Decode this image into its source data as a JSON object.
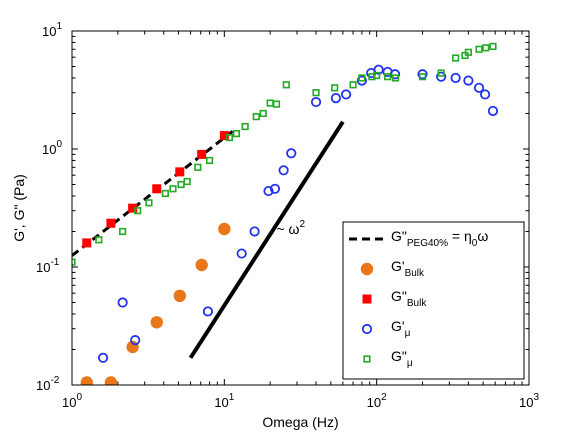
{
  "chart_data": {
    "type": "scatter",
    "xscale": "log",
    "yscale": "log",
    "xlim": [
      1,
      1000
    ],
    "ylim": [
      0.01,
      10
    ],
    "xlabel": "Omega (Hz)",
    "ylabel": "G', G\" (Pa)",
    "grid": false,
    "legend_position": "bottom-right",
    "x_tick_labels": [
      {
        "value": 1,
        "base": "10",
        "exp": "0"
      },
      {
        "value": 10,
        "base": "10",
        "exp": "1"
      },
      {
        "value": 100,
        "base": "10",
        "exp": "2"
      },
      {
        "value": 1000,
        "base": "10",
        "exp": "3"
      }
    ],
    "y_tick_labels": [
      {
        "value": 0.01,
        "base": "10",
        "exp": "-2"
      },
      {
        "value": 0.1,
        "base": "10",
        "exp": "-1"
      },
      {
        "value": 1,
        "base": "10",
        "exp": "0"
      },
      {
        "value": 10,
        "base": "10",
        "exp": "1"
      }
    ],
    "annotation": {
      "text": "~ ω",
      "sup": "2",
      "x": 22,
      "y": 0.19
    },
    "slope_line": {
      "x": [
        6,
        60
      ],
      "y": [
        0.017,
        1.7
      ],
      "color": "#000000"
    },
    "legend": [
      {
        "key": "peg",
        "main": "G\"",
        "sub": "PEG40%",
        "suffix": " = η",
        "suffix_sub": "0",
        "suffix_end": "ω"
      },
      {
        "key": "gp_bulk",
        "main": "G'",
        "sub": "Bulk"
      },
      {
        "key": "gpp_bulk",
        "main": "G\"",
        "sub": "Bulk"
      },
      {
        "key": "gp_mu",
        "main": "G'",
        "sub": "μ"
      },
      {
        "key": "gpp_mu",
        "main": "G\"",
        "sub": "μ"
      }
    ],
    "series": [
      {
        "key": "peg",
        "name": "G\"PEG40% = η0ω",
        "style": "dashed-line",
        "color": "#000000",
        "x": [
          1,
          11.8
        ],
        "y": [
          0.125,
          1.47
        ]
      },
      {
        "key": "gp_bulk",
        "name": "G'Bulk",
        "style": "filled-circle",
        "color": "#e8771a",
        "x": [
          1.25,
          1.8,
          2.5,
          3.6,
          5.1,
          7.1,
          10.0
        ],
        "y": [
          0.0105,
          0.0105,
          0.021,
          0.034,
          0.057,
          0.104,
          0.21
        ]
      },
      {
        "key": "gpp_bulk",
        "name": "G\"Bulk",
        "style": "filled-square",
        "color": "#ff0000",
        "x": [
          1.25,
          1.8,
          2.5,
          3.6,
          5.1,
          7.1,
          10.0
        ],
        "y": [
          0.16,
          0.235,
          0.315,
          0.46,
          0.64,
          0.9,
          1.3
        ]
      },
      {
        "key": "gp_mu",
        "name": "G'μ",
        "style": "open-circle",
        "color": "#2233ee",
        "x": [
          1.6,
          2.15,
          2.6,
          7.8,
          13.0,
          15.8,
          19.5,
          21.5,
          24.5,
          27.5,
          40,
          54,
          63,
          80,
          92,
          103,
          118,
          132,
          200,
          265,
          330,
          400,
          470,
          515,
          580
        ],
        "y": [
          0.017,
          0.05,
          0.024,
          0.042,
          0.13,
          0.2,
          0.44,
          0.46,
          0.66,
          0.92,
          2.5,
          2.7,
          2.9,
          3.8,
          4.4,
          4.7,
          4.5,
          4.3,
          4.3,
          4.1,
          4.0,
          3.8,
          3.3,
          2.9,
          2.1
        ]
      },
      {
        "key": "gpp_mu",
        "name": "G\"μ",
        "style": "open-square",
        "color": "#22aa22",
        "x": [
          1.0,
          1.5,
          2.15,
          2.7,
          3.2,
          4.1,
          4.6,
          5.2,
          5.7,
          6.7,
          8.0,
          10.8,
          12.0,
          13.7,
          16.2,
          18.0,
          20.0,
          22.0,
          25.5,
          40,
          53,
          70,
          80,
          93,
          100,
          118,
          133,
          200,
          265,
          330,
          380,
          400,
          470,
          520,
          580
        ],
        "y": [
          0.11,
          0.17,
          0.2,
          0.3,
          0.35,
          0.42,
          0.46,
          0.5,
          0.53,
          0.7,
          0.8,
          1.25,
          1.35,
          1.55,
          1.88,
          2.0,
          2.45,
          2.4,
          3.5,
          3.0,
          3.3,
          3.5,
          4.0,
          4.1,
          4.2,
          4.1,
          4.0,
          4.1,
          4.4,
          5.9,
          6.2,
          6.6,
          7.0,
          7.2,
          7.4
        ]
      }
    ]
  }
}
